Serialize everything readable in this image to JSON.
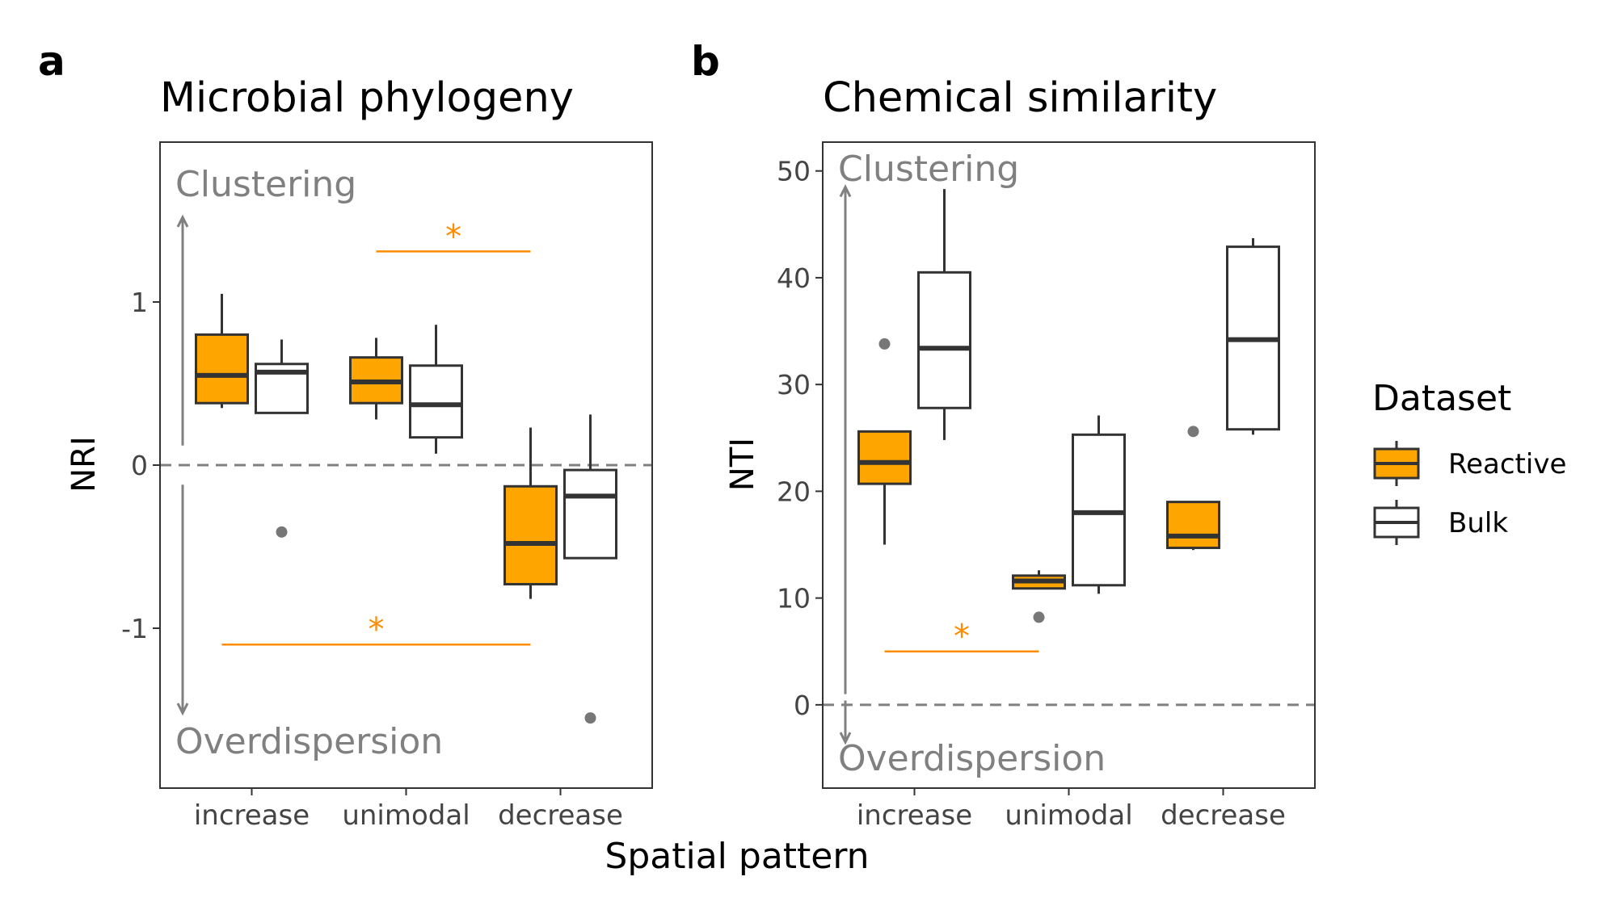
{
  "figure": {
    "shared_xlabel": "Spatial pattern",
    "legend": {
      "title": "Dataset",
      "entries": [
        {
          "name": "Reactive",
          "color": "#FFA500"
        },
        {
          "name": "Bulk",
          "color": "#FFFFFF"
        }
      ]
    },
    "colors": {
      "reactive": "#FFA500",
      "bulk": "#FFFFFF",
      "box_stroke": "#333333",
      "outlier": "#777777",
      "annotation_gray": "#808080",
      "significance": "#FF8C00"
    }
  },
  "chart_data": [
    {
      "type": "box",
      "panel_label": "a",
      "title": "Microbial phylogeny",
      "ylabel": "NRI",
      "ylim": [
        -1.98,
        1.98
      ],
      "yticks": [
        {
          "value": 1,
          "label": "1"
        },
        {
          "value": 0,
          "label": "0"
        },
        {
          "value": -1,
          "label": "-1"
        }
      ],
      "categories": [
        "increase",
        "unimodal",
        "decrease"
      ],
      "reference_line": 0,
      "direction_labels": {
        "top": "Clustering",
        "bottom": "Overdispersion"
      },
      "arrows": {
        "top": 1.52,
        "bottom": -1.52
      },
      "series": [
        {
          "name": "Reactive",
          "boxes": [
            {
              "min": 0.35,
              "q1": 0.38,
              "median": 0.55,
              "q3": 0.8,
              "max": 1.05,
              "outliers": []
            },
            {
              "min": 0.28,
              "q1": 0.38,
              "median": 0.51,
              "q3": 0.66,
              "max": 0.78,
              "outliers": []
            },
            {
              "min": -0.82,
              "q1": -0.73,
              "median": -0.48,
              "q3": -0.13,
              "max": 0.23,
              "outliers": []
            }
          ]
        },
        {
          "name": "Bulk",
          "boxes": [
            {
              "min": 0.32,
              "q1": 0.32,
              "median": 0.57,
              "q3": 0.62,
              "max": 0.77,
              "outliers": [
                -0.41
              ]
            },
            {
              "min": 0.07,
              "q1": 0.17,
              "median": 0.37,
              "q3": 0.61,
              "max": 0.86,
              "outliers": []
            },
            {
              "min": -0.57,
              "q1": -0.57,
              "median": -0.19,
              "q3": -0.03,
              "max": 0.31,
              "outliers": [
                -1.55
              ]
            }
          ]
        }
      ],
      "significance": [
        {
          "from": 1,
          "to": 2,
          "y": 1.31,
          "label": "*"
        },
        {
          "from": 0,
          "to": 2,
          "y": -1.1,
          "label": "*"
        }
      ]
    },
    {
      "type": "box",
      "panel_label": "b",
      "title": "Chemical similarity",
      "ylabel": "NTI",
      "ylim": [
        -7.8,
        52.7
      ],
      "yticks": [
        {
          "value": 50,
          "label": "50"
        },
        {
          "value": 40,
          "label": "40"
        },
        {
          "value": 30,
          "label": "30"
        },
        {
          "value": 20,
          "label": "20"
        },
        {
          "value": 10,
          "label": "10"
        },
        {
          "value": 0,
          "label": "0"
        }
      ],
      "categories": [
        "increase",
        "unimodal",
        "decrease"
      ],
      "reference_line": 0,
      "direction_labels": {
        "top": "Clustering",
        "bottom": "Overdispersion"
      },
      "arrows": {
        "top": 48.5,
        "bottom": -3.5
      },
      "series": [
        {
          "name": "Reactive",
          "boxes": [
            {
              "min": 15.0,
              "q1": 20.7,
              "median": 22.7,
              "q3": 25.6,
              "max": 25.6,
              "outliers": [
                33.8
              ]
            },
            {
              "min": 10.9,
              "q1": 10.9,
              "median": 11.6,
              "q3": 12.1,
              "max": 12.6,
              "outliers": [
                8.2
              ]
            },
            {
              "min": 14.5,
              "q1": 14.7,
              "median": 15.8,
              "q3": 19.0,
              "max": 19.0,
              "outliers": [
                25.6
              ]
            }
          ]
        },
        {
          "name": "Bulk",
          "boxes": [
            {
              "min": 24.8,
              "q1": 27.8,
              "median": 33.4,
              "q3": 40.5,
              "max": 48.3,
              "outliers": []
            },
            {
              "min": 10.4,
              "q1": 11.2,
              "median": 18.0,
              "q3": 25.3,
              "max": 27.1,
              "outliers": []
            },
            {
              "min": 25.3,
              "q1": 25.8,
              "median": 34.2,
              "q3": 42.9,
              "max": 43.7,
              "outliers": []
            }
          ]
        }
      ],
      "significance": [
        {
          "from": 0,
          "to": 1,
          "y": 5.0,
          "label": "*"
        }
      ]
    }
  ]
}
